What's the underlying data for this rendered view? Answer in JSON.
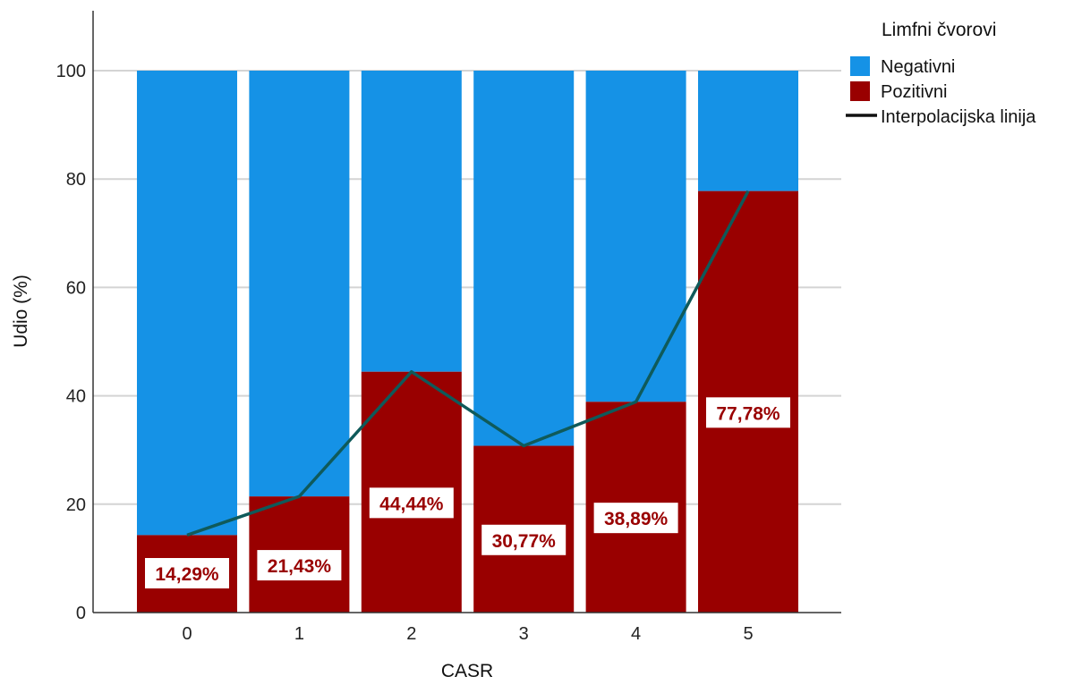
{
  "chart_data": {
    "type": "bar",
    "stacked": true,
    "categories": [
      "0",
      "1",
      "2",
      "3",
      "4",
      "5"
    ],
    "series": [
      {
        "name": "Pozitivni",
        "values": [
          14.29,
          21.43,
          44.44,
          30.77,
          38.89,
          77.78
        ],
        "color": "#990000"
      },
      {
        "name": "Negativni",
        "values": [
          85.71,
          78.57,
          55.56,
          69.23,
          61.11,
          22.22
        ],
        "color": "#1592e6"
      }
    ],
    "line": {
      "name": "Interpolacijska linija",
      "values": [
        14.29,
        21.43,
        44.44,
        30.77,
        38.89,
        77.78
      ],
      "color": "#0f5a5a"
    },
    "data_labels": [
      "14,29%",
      "21,43%",
      "44,44%",
      "30,77%",
      "38,89%",
      "77,78%"
    ],
    "data_label_color": "#990000",
    "xlabel": "CASR",
    "ylabel": "Udio (%)",
    "ylim": [
      0,
      100
    ],
    "yticks": [
      0,
      20,
      40,
      60,
      80,
      100
    ],
    "grid": true,
    "legend": {
      "title": "Limfni čvorovi",
      "position": "top-right",
      "entries": [
        {
          "label": "Negativni",
          "kind": "swatch",
          "color": "#1592e6"
        },
        {
          "label": "Pozitivni",
          "kind": "swatch",
          "color": "#990000"
        },
        {
          "label": "Interpolacijska linija",
          "kind": "line",
          "color": "#111111"
        }
      ]
    }
  }
}
